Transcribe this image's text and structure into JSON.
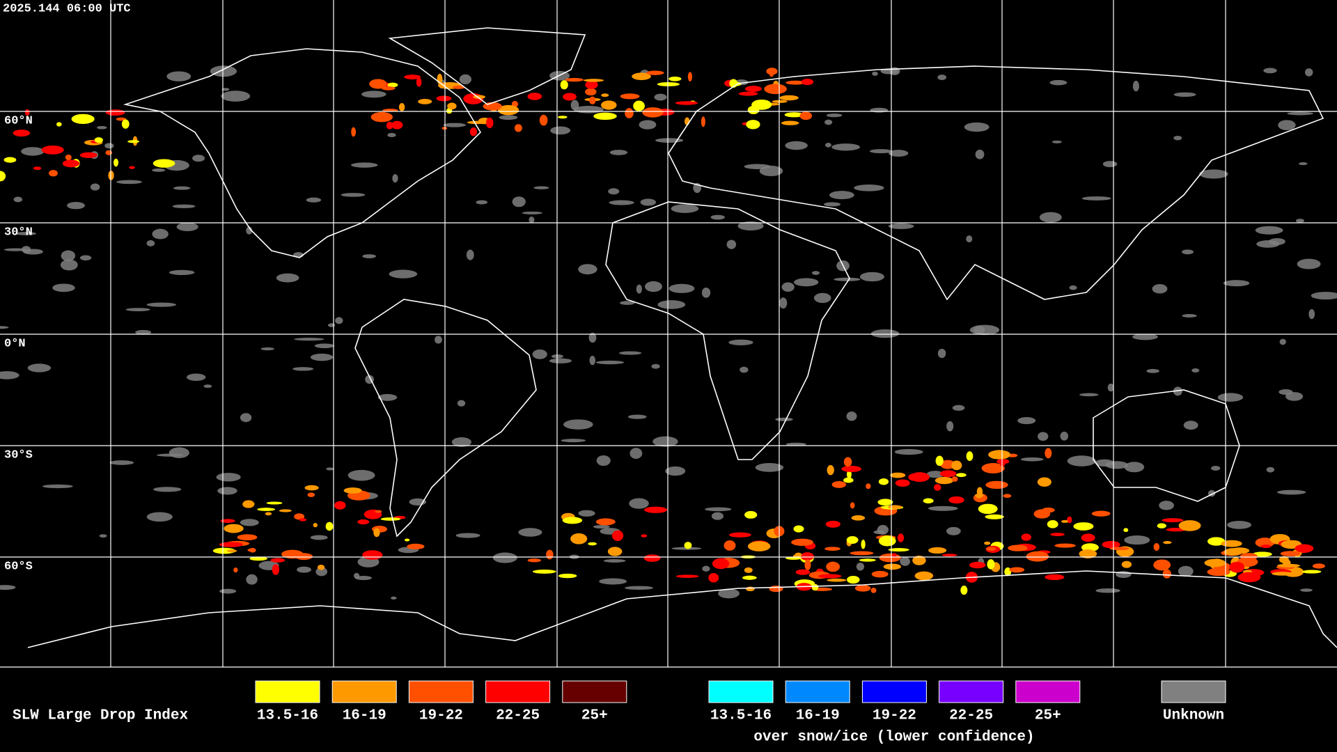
{
  "header": {
    "timestamp": "2025.144 06:00 UTC"
  },
  "latitude_labels": [
    "60°N",
    "30°N",
    "0°N",
    "30°S",
    "60°S"
  ],
  "legend": {
    "title": "SLW Large Drop Index",
    "items": [
      {
        "label": "13.5-16",
        "color": "#ffff00"
      },
      {
        "label": "16-19",
        "color": "#ff9900"
      },
      {
        "label": "19-22",
        "color": "#ff5000"
      },
      {
        "label": "22-25",
        "color": "#ff0000"
      },
      {
        "label": "25+",
        "color": "#660000"
      }
    ],
    "snow_items": [
      {
        "label": "13.5-16",
        "color": "#00ffff"
      },
      {
        "label": "16-19",
        "color": "#0088ff"
      },
      {
        "label": "19-22",
        "color": "#0000ff"
      },
      {
        "label": "22-25",
        "color": "#7700ff"
      },
      {
        "label": "25+",
        "color": "#cc00cc"
      }
    ],
    "snow_note": "over snow/ice (lower confidence)",
    "unknown": {
      "label": "Unknown",
      "color": "#808080"
    }
  }
}
